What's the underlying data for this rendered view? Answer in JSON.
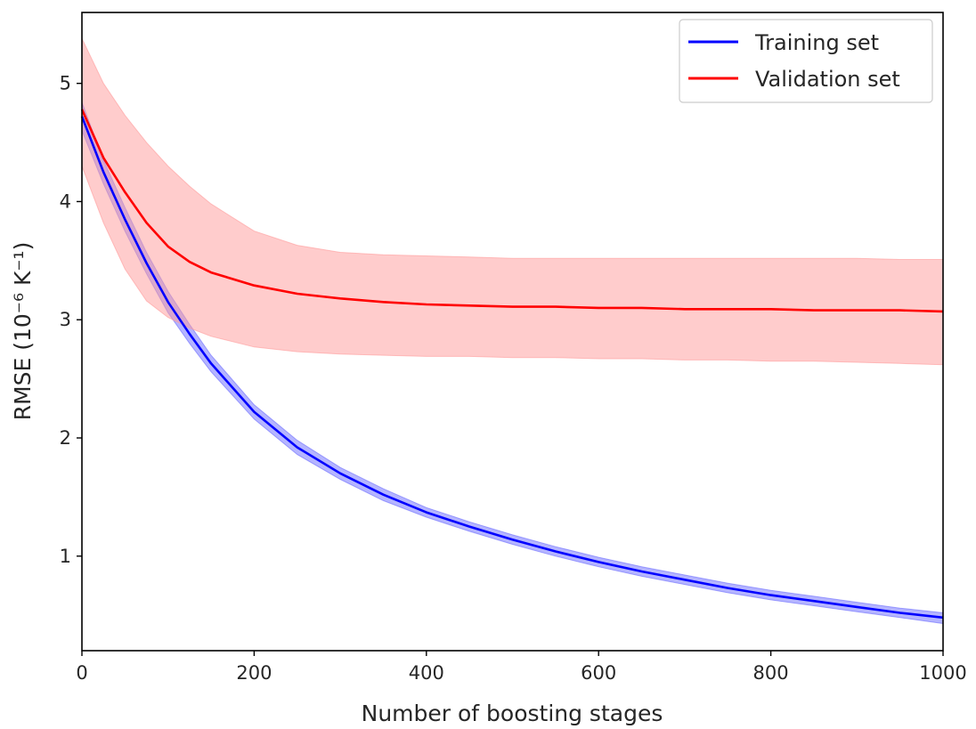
{
  "chart_data": {
    "type": "line",
    "title": "",
    "xlabel": "Number of boosting stages",
    "ylabel": "RMSE (10⁻⁶ K⁻¹)",
    "xlim": [
      0,
      1000
    ],
    "ylim": [
      0.2,
      5.6
    ],
    "xticks": [
      0,
      200,
      400,
      600,
      800,
      1000
    ],
    "yticks": [
      1,
      2,
      3,
      4,
      5
    ],
    "grid": false,
    "legend_position": "top-right",
    "series": [
      {
        "name": "Training set",
        "color": "#0000ff",
        "band_color": "#6b6bff",
        "x": [
          0,
          25,
          50,
          75,
          100,
          125,
          150,
          200,
          250,
          300,
          350,
          400,
          450,
          500,
          550,
          600,
          650,
          700,
          750,
          800,
          850,
          900,
          950,
          1000
        ],
        "y": [
          4.72,
          4.25,
          3.85,
          3.48,
          3.15,
          2.88,
          2.63,
          2.22,
          1.92,
          1.7,
          1.52,
          1.37,
          1.25,
          1.14,
          1.04,
          0.95,
          0.87,
          0.8,
          0.73,
          0.67,
          0.62,
          0.57,
          0.52,
          0.48
        ],
        "y_lower": [
          4.6,
          4.15,
          3.75,
          3.39,
          3.06,
          2.8,
          2.56,
          2.16,
          1.86,
          1.65,
          1.47,
          1.33,
          1.21,
          1.1,
          1.0,
          0.91,
          0.83,
          0.76,
          0.69,
          0.63,
          0.58,
          0.53,
          0.48,
          0.43
        ],
        "y_upper": [
          4.84,
          4.35,
          3.95,
          3.57,
          3.24,
          2.96,
          2.7,
          2.28,
          1.98,
          1.75,
          1.57,
          1.41,
          1.29,
          1.18,
          1.08,
          0.99,
          0.91,
          0.84,
          0.77,
          0.71,
          0.66,
          0.61,
          0.56,
          0.52
        ]
      },
      {
        "name": "Validation set",
        "color": "#ff0000",
        "band_color": "#ff9a9a",
        "x": [
          0,
          25,
          50,
          75,
          100,
          125,
          150,
          200,
          250,
          300,
          350,
          400,
          450,
          500,
          550,
          600,
          650,
          700,
          750,
          800,
          850,
          900,
          950,
          1000
        ],
        "y": [
          4.78,
          4.37,
          4.08,
          3.82,
          3.62,
          3.49,
          3.4,
          3.29,
          3.22,
          3.18,
          3.15,
          3.13,
          3.12,
          3.11,
          3.11,
          3.1,
          3.1,
          3.09,
          3.09,
          3.09,
          3.08,
          3.08,
          3.08,
          3.07
        ],
        "y_lower": [
          4.3,
          3.82,
          3.43,
          3.16,
          3.02,
          2.93,
          2.86,
          2.77,
          2.73,
          2.71,
          2.7,
          2.69,
          2.69,
          2.68,
          2.68,
          2.67,
          2.67,
          2.66,
          2.66,
          2.65,
          2.65,
          2.64,
          2.63,
          2.62
        ],
        "y_upper": [
          5.38,
          5.0,
          4.73,
          4.5,
          4.3,
          4.13,
          3.98,
          3.75,
          3.63,
          3.57,
          3.55,
          3.54,
          3.53,
          3.52,
          3.52,
          3.52,
          3.52,
          3.52,
          3.52,
          3.52,
          3.52,
          3.52,
          3.51,
          3.51
        ]
      }
    ]
  }
}
